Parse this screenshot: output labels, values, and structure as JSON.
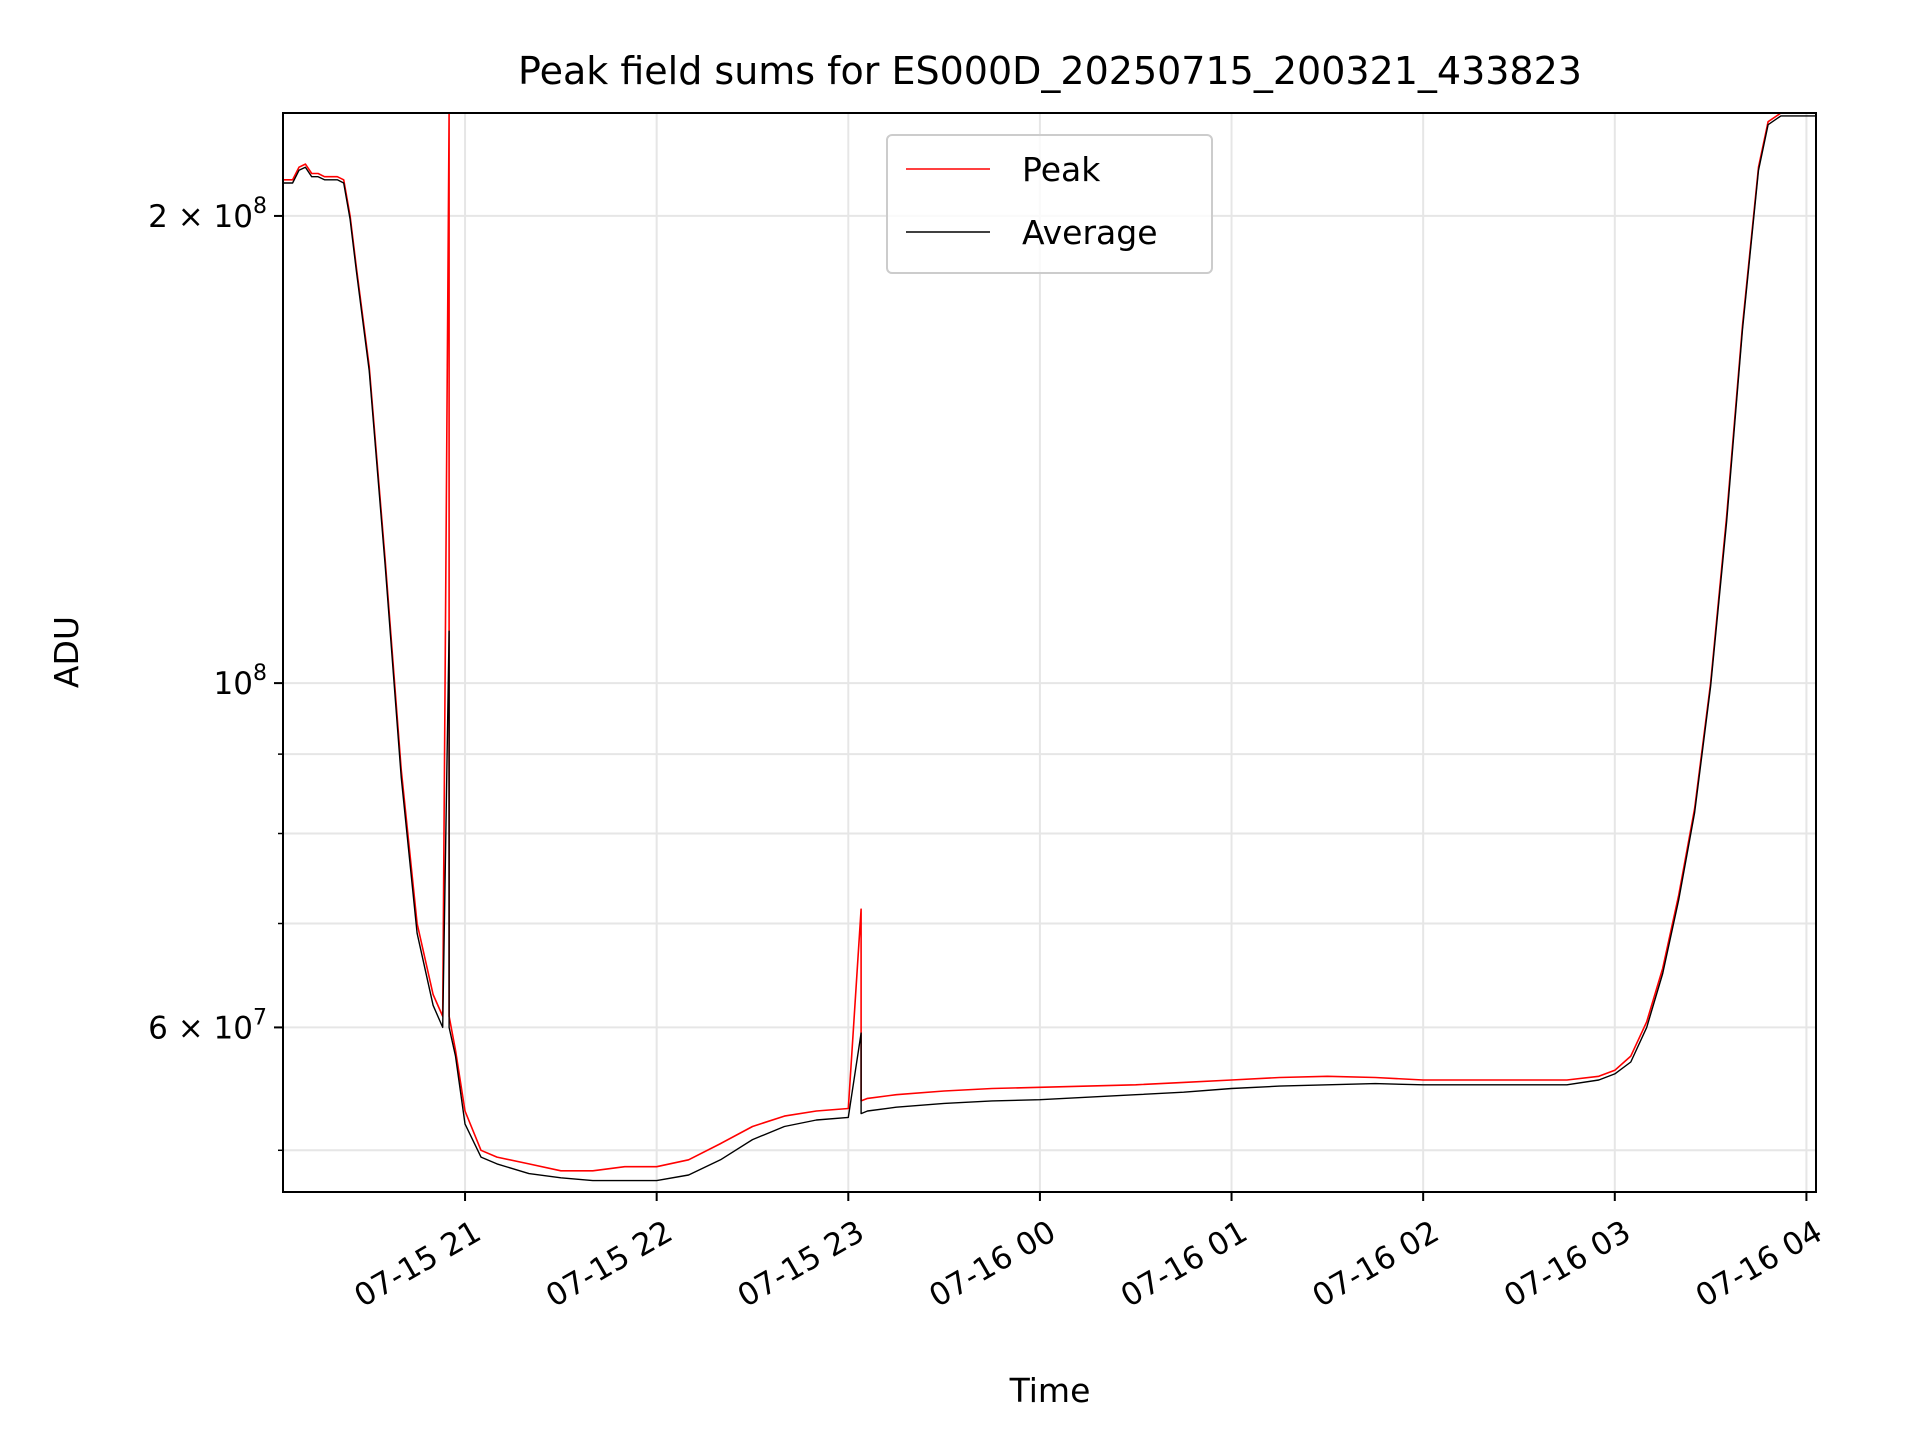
{
  "chart_data": {
    "type": "line",
    "title": "Peak field sums for ES000D_20250715_200321_433823",
    "xlabel": "Time",
    "ylabel": "ADU",
    "yscale": "log",
    "ylim": [
      47000000,
      233000000
    ],
    "x_ticks": [
      "07-15 21",
      "07-15 22",
      "07-15 23",
      "07-16 00",
      "07-16 01",
      "07-16 02",
      "07-16 03",
      "07-16 04"
    ],
    "y_ticks": [
      {
        "value": 200000000,
        "mantissa": "2",
        "times": " × ",
        "base": "10",
        "exp": "8"
      },
      {
        "value": 100000000,
        "mantissa": "",
        "times": "",
        "base": "10",
        "exp": "8"
      },
      {
        "value": 60000000,
        "mantissa": "6",
        "times": " × ",
        "base": "10",
        "exp": "7"
      }
    ],
    "grid": true,
    "legend_position": "top-center",
    "series": [
      {
        "name": "Peak",
        "color": "#ff0000",
        "x": [
          "2025-07-15 20:03",
          "2025-07-15 20:06",
          "2025-07-15 20:08",
          "2025-07-15 20:10",
          "2025-07-15 20:12",
          "2025-07-15 20:14",
          "2025-07-15 20:16",
          "2025-07-15 20:18",
          "2025-07-15 20:20",
          "2025-07-15 20:22",
          "2025-07-15 20:24",
          "2025-07-15 20:26",
          "2025-07-15 20:30",
          "2025-07-15 20:35",
          "2025-07-15 20:40",
          "2025-07-15 20:45",
          "2025-07-15 20:50",
          "2025-07-15 20:53",
          "2025-07-15 20:55",
          "2025-07-15 20:55",
          "2025-07-15 20:57",
          "2025-07-15 21:00",
          "2025-07-15 21:05",
          "2025-07-15 21:10",
          "2025-07-15 21:20",
          "2025-07-15 21:30",
          "2025-07-15 21:40",
          "2025-07-15 21:50",
          "2025-07-15 22:00",
          "2025-07-15 22:10",
          "2025-07-15 22:20",
          "2025-07-15 22:30",
          "2025-07-15 22:40",
          "2025-07-15 22:50",
          "2025-07-15 23:00",
          "2025-07-15 23:04",
          "2025-07-15 23:04",
          "2025-07-15 23:06",
          "2025-07-15 23:15",
          "2025-07-15 23:30",
          "2025-07-15 23:45",
          "2025-07-16 00:00",
          "2025-07-16 00:15",
          "2025-07-16 00:30",
          "2025-07-16 00:45",
          "2025-07-16 01:00",
          "2025-07-16 01:15",
          "2025-07-16 01:30",
          "2025-07-16 01:45",
          "2025-07-16 02:00",
          "2025-07-16 02:15",
          "2025-07-16 02:30",
          "2025-07-16 02:45",
          "2025-07-16 02:55",
          "2025-07-16 03:00",
          "2025-07-16 03:05",
          "2025-07-16 03:10",
          "2025-07-16 03:15",
          "2025-07-16 03:20",
          "2025-07-16 03:25",
          "2025-07-16 03:30",
          "2025-07-16 03:35",
          "2025-07-16 03:40",
          "2025-07-16 03:45",
          "2025-07-16 03:48",
          "2025-07-16 03:52",
          "2025-07-16 04:03"
        ],
        "values": [
          211000000,
          211000000,
          215000000,
          216000000,
          213000000,
          213000000,
          212000000,
          212000000,
          212000000,
          211000000,
          200000000,
          185000000,
          160000000,
          120000000,
          88000000,
          70000000,
          63000000,
          61000000,
          233000000,
          61000000,
          58000000,
          53000000,
          50000000,
          49500000,
          49000000,
          48500000,
          48500000,
          48800000,
          48800000,
          49300000,
          50500000,
          51800000,
          52600000,
          53000000,
          53200000,
          71500000,
          53800000,
          54000000,
          54300000,
          54600000,
          54800000,
          54900000,
          55000000,
          55100000,
          55300000,
          55500000,
          55700000,
          55800000,
          55700000,
          55500000,
          55500000,
          55500000,
          55500000,
          55800000,
          56300000,
          57500000,
          60500000,
          65500000,
          73000000,
          83000000,
          100000000,
          128000000,
          170000000,
          215000000,
          230000000,
          233000000,
          233000000
        ]
      },
      {
        "name": "Average",
        "color": "#000000",
        "x": [
          "2025-07-15 20:03",
          "2025-07-15 20:06",
          "2025-07-15 20:08",
          "2025-07-15 20:10",
          "2025-07-15 20:12",
          "2025-07-15 20:14",
          "2025-07-15 20:16",
          "2025-07-15 20:18",
          "2025-07-15 20:20",
          "2025-07-15 20:22",
          "2025-07-15 20:24",
          "2025-07-15 20:26",
          "2025-07-15 20:30",
          "2025-07-15 20:35",
          "2025-07-15 20:40",
          "2025-07-15 20:45",
          "2025-07-15 20:50",
          "2025-07-15 20:53",
          "2025-07-15 20:55",
          "2025-07-15 20:55",
          "2025-07-15 20:57",
          "2025-07-15 21:00",
          "2025-07-15 21:05",
          "2025-07-15 21:10",
          "2025-07-15 21:20",
          "2025-07-15 21:30",
          "2025-07-15 21:40",
          "2025-07-15 21:50",
          "2025-07-15 22:00",
          "2025-07-15 22:10",
          "2025-07-15 22:20",
          "2025-07-15 22:30",
          "2025-07-15 22:40",
          "2025-07-15 22:50",
          "2025-07-15 23:00",
          "2025-07-15 23:04",
          "2025-07-15 23:04",
          "2025-07-15 23:06",
          "2025-07-15 23:15",
          "2025-07-15 23:30",
          "2025-07-15 23:45",
          "2025-07-16 00:00",
          "2025-07-16 00:15",
          "2025-07-16 00:30",
          "2025-07-16 00:45",
          "2025-07-16 01:00",
          "2025-07-16 01:15",
          "2025-07-16 01:30",
          "2025-07-16 01:45",
          "2025-07-16 02:00",
          "2025-07-16 02:15",
          "2025-07-16 02:30",
          "2025-07-16 02:45",
          "2025-07-16 02:55",
          "2025-07-16 03:00",
          "2025-07-16 03:05",
          "2025-07-16 03:10",
          "2025-07-16 03:15",
          "2025-07-16 03:20",
          "2025-07-16 03:25",
          "2025-07-16 03:30",
          "2025-07-16 03:35",
          "2025-07-16 03:40",
          "2025-07-16 03:45",
          "2025-07-16 03:48",
          "2025-07-16 03:52",
          "2025-07-16 04:03"
        ],
        "values": [
          210000000,
          210000000,
          214000000,
          215000000,
          212000000,
          212000000,
          211000000,
          211000000,
          211000000,
          210000000,
          199000000,
          184000000,
          159000000,
          119000000,
          87000000,
          69000000,
          62000000,
          60000000,
          108000000,
          60000000,
          57500000,
          52000000,
          49500000,
          49000000,
          48300000,
          48000000,
          47800000,
          47800000,
          47800000,
          48200000,
          49300000,
          50800000,
          51800000,
          52300000,
          52500000,
          59500000,
          52800000,
          53000000,
          53300000,
          53600000,
          53800000,
          53900000,
          54100000,
          54300000,
          54500000,
          54800000,
          55000000,
          55100000,
          55200000,
          55100000,
          55100000,
          55100000,
          55100000,
          55500000,
          56000000,
          57000000,
          60000000,
          65000000,
          72500000,
          82500000,
          99500000,
          127000000,
          169000000,
          214000000,
          229000000,
          232000000,
          232000000
        ]
      }
    ]
  }
}
